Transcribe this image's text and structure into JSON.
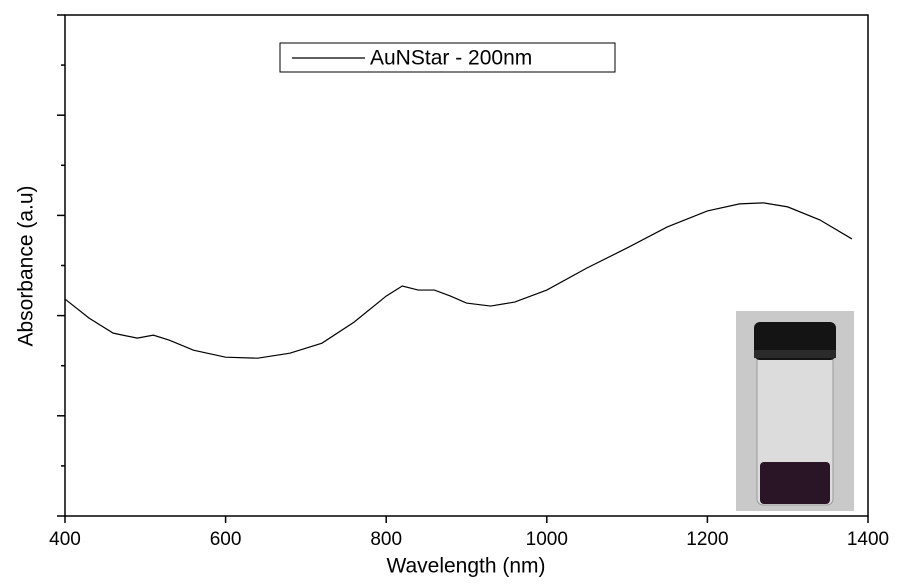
{
  "chart_data": {
    "type": "line",
    "x_label": "Wavelength (nm)",
    "y_label": "Absorbance (a.u)",
    "x": [
      400,
      430,
      460,
      490,
      510,
      530,
      560,
      600,
      640,
      680,
      720,
      760,
      800,
      820,
      840,
      860,
      880,
      900,
      930,
      960,
      1000,
      1050,
      1100,
      1150,
      1200,
      1240,
      1270,
      1300,
      1340,
      1380
    ],
    "series": [
      {
        "name": "AuNStar - 200nm",
        "color": "#000000",
        "values": [
          4.33,
          3.95,
          3.65,
          3.55,
          3.61,
          3.51,
          3.31,
          3.17,
          3.15,
          3.25,
          3.45,
          3.87,
          4.39,
          4.59,
          4.51,
          4.51,
          4.39,
          4.25,
          4.19,
          4.27,
          4.51,
          4.95,
          5.35,
          5.77,
          6.09,
          6.23,
          6.25,
          6.17,
          5.91,
          5.53
        ]
      }
    ],
    "xlim": [
      400,
      1400
    ],
    "xticks": [
      400,
      600,
      800,
      1000,
      1200,
      1400
    ],
    "ylim": [
      0,
      10
    ],
    "yticks": [
      0,
      1,
      2,
      3,
      4,
      5,
      6,
      7,
      8,
      9,
      10
    ],
    "grid": false
  }
}
